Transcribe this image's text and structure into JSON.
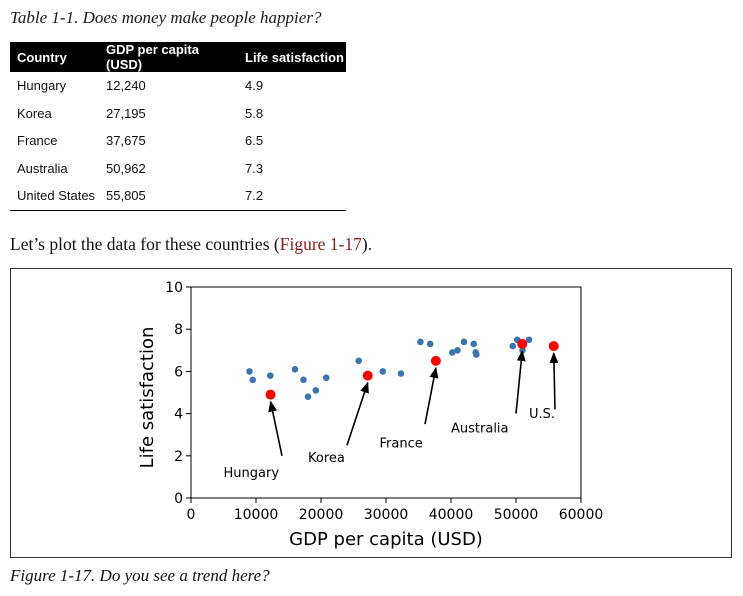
{
  "table": {
    "caption": "Table 1-1. Does money make people happier?",
    "headers": [
      "Country",
      "GDP per capita (USD)",
      "Life satisfaction"
    ],
    "rows": [
      [
        "Hungary",
        "12,240",
        "4.9"
      ],
      [
        "Korea",
        "27,195",
        "5.8"
      ],
      [
        "France",
        "37,675",
        "6.5"
      ],
      [
        "Australia",
        "50,962",
        "7.3"
      ],
      [
        "United States",
        "55,805",
        "7.2"
      ]
    ]
  },
  "intro": {
    "before": "Let’s plot the data for these countries (",
    "link": "Figure 1-17",
    "after": ")."
  },
  "figure_caption": "Figure 1-17. Do you see a trend here?",
  "colors": {
    "points": "#3a75b0",
    "highlight": "#ff0000",
    "link": "#8b1a1a"
  },
  "chart_data": {
    "type": "scatter",
    "xlabel": "GDP per capita (USD)",
    "ylabel": "Life satisfaction",
    "xlim": [
      0,
      60000
    ],
    "ylim": [
      0,
      10
    ],
    "xticks": [
      0,
      10000,
      20000,
      30000,
      40000,
      50000,
      60000
    ],
    "yticks": [
      0,
      2,
      4,
      6,
      8,
      10
    ],
    "series": [
      {
        "points": [
          [
            9000,
            6.0
          ],
          [
            9500,
            5.6
          ],
          [
            12200,
            5.8
          ],
          [
            16000,
            6.1
          ],
          [
            17300,
            5.6
          ],
          [
            18000,
            4.8
          ],
          [
            19200,
            5.1
          ],
          [
            20800,
            5.7
          ],
          [
            25800,
            6.5
          ],
          [
            29500,
            6.0
          ],
          [
            32300,
            5.9
          ],
          [
            35300,
            7.4
          ],
          [
            36800,
            7.3
          ],
          [
            40200,
            6.9
          ],
          [
            41000,
            7.0
          ],
          [
            42000,
            7.4
          ],
          [
            43500,
            7.3
          ],
          [
            43800,
            6.9
          ],
          [
            43900,
            6.8
          ],
          [
            49500,
            7.2
          ],
          [
            50200,
            7.5
          ],
          [
            51000,
            7.0
          ],
          [
            52000,
            7.5
          ]
        ]
      },
      {
        "highlighted": true,
        "points": [
          [
            12240,
            4.9,
            "Hungary"
          ],
          [
            27195,
            5.8,
            "Korea"
          ],
          [
            37675,
            6.5,
            "France"
          ],
          [
            50962,
            7.3,
            "Australia"
          ],
          [
            55805,
            7.2,
            "U.S."
          ]
        ]
      }
    ],
    "annotations": [
      {
        "text": "Hungary",
        "x": 5000,
        "y": 1,
        "arrow_from": [
          14000,
          2.0
        ],
        "arrow_to": [
          12240,
          4.9
        ]
      },
      {
        "text": "Korea",
        "x": 18000,
        "y": 1.7,
        "arrow_from": [
          24000,
          2.5
        ],
        "arrow_to": [
          27195,
          5.8
        ]
      },
      {
        "text": "France",
        "x": 29000,
        "y": 2.4,
        "arrow_from": [
          36000,
          3.5
        ],
        "arrow_to": [
          37675,
          6.5
        ]
      },
      {
        "text": "Australia",
        "x": 40000,
        "y": 3.1,
        "arrow_from": [
          50000,
          4.0
        ],
        "arrow_to": [
          50962,
          7.3
        ]
      },
      {
        "text": "U.S.",
        "x": 52000,
        "y": 3.8,
        "arrow_from": [
          56000,
          4.2
        ],
        "arrow_to": [
          55805,
          7.2
        ]
      }
    ]
  }
}
